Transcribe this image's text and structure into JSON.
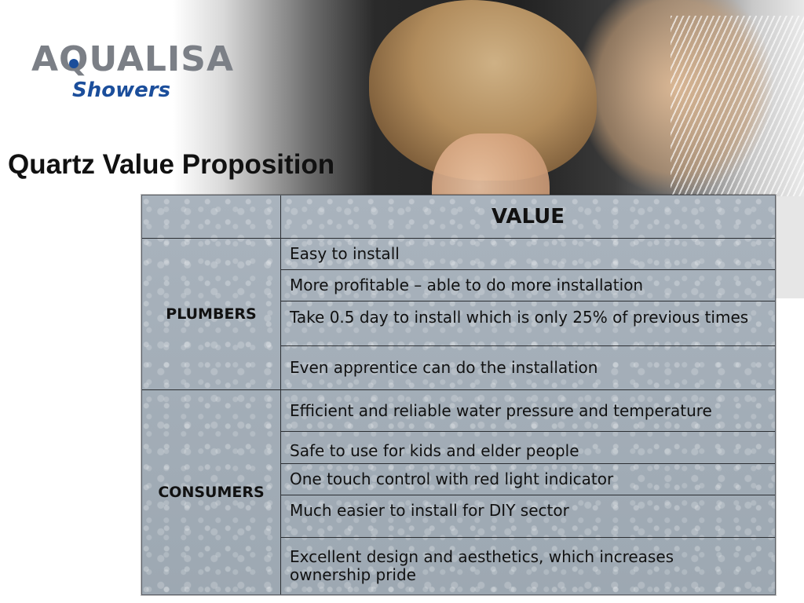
{
  "logo": {
    "brand": "AQUALISA",
    "sub": "Showers"
  },
  "title": "Quartz Value Proposition",
  "table": {
    "header": "VALUE",
    "groups": [
      {
        "label": "PLUMBERS",
        "rows": [
          "Easy to install",
          "More profitable – able to do more installation",
          "Take 0.5 day to install which is only 25% of previous times",
          "Even apprentice can do the installation"
        ]
      },
      {
        "label": "CONSUMERS",
        "rows": [
          "Efficient and reliable water pressure and temperature",
          "Safe to use for kids and elder people",
          "One touch control with red light indicator",
          "Much easier to install for DIY sector",
          "Excellent design and aesthetics, which increases ownership pride"
        ]
      }
    ]
  },
  "colors": {
    "logo_gray": "#7b7f86",
    "logo_blue": "#1b4e9b",
    "table_bg": "#a9b3bd"
  }
}
